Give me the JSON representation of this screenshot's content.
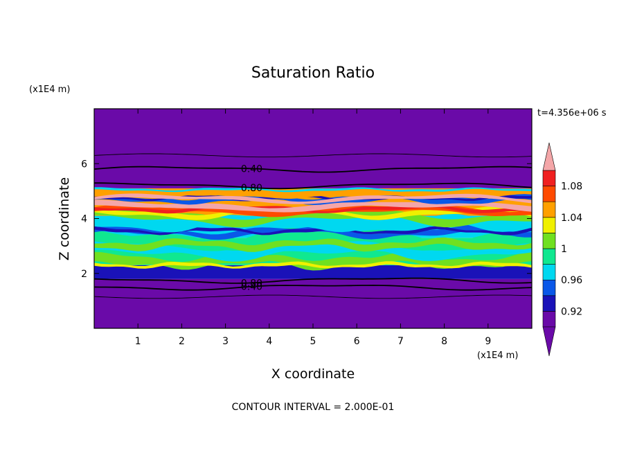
{
  "chart_data": {
    "type": "heatmap",
    "title": "Saturation Ratio",
    "xlabel": "X coordinate",
    "ylabel": "Z coordinate",
    "x_unit": "(x1E4 m)",
    "y_unit": "(x1E4 m)",
    "time_label": "t=4.356e+06 s",
    "footnote": "CONTOUR INTERVAL = 2.000E-01",
    "xlim": [
      0,
      10
    ],
    "ylim": [
      0,
      8
    ],
    "x_ticks": [
      "1",
      "2",
      "3",
      "4",
      "5",
      "6",
      "7",
      "8",
      "9"
    ],
    "y_ticks": [
      "2",
      "4",
      "6"
    ],
    "contour_lines": [
      {
        "level": 0.4,
        "label": "0.40",
        "z": 5.8
      },
      {
        "level": 0.8,
        "label": "0.80",
        "z": 5.2
      },
      {
        "level": 0.8,
        "label": "0.80",
        "z": 1.75
      },
      {
        "level": 0.4,
        "label": "0.40",
        "z": 1.5
      }
    ],
    "colorbar": {
      "ticks": [
        "1.08",
        "1.04",
        "1",
        "0.96",
        "0.92"
      ],
      "tick_values": [
        1.08,
        1.04,
        1.0,
        0.96,
        0.92
      ],
      "levels": [
        0.9,
        0.92,
        0.94,
        0.96,
        0.98,
        1.0,
        1.02,
        1.04,
        1.06,
        1.08,
        1.1
      ],
      "colors": [
        "#6a0aa8",
        "#1a12b8",
        "#0a58e8",
        "#00d8f0",
        "#10e890",
        "#70e020",
        "#f0f000",
        "#ffa000",
        "#ff4a00",
        "#f02020",
        "#f4a6a8"
      ],
      "under_color": "#6a0aa8",
      "over_color": "#f4a6a8"
    },
    "field_bands": [
      {
        "z_range": [
          0.0,
          1.8
        ],
        "value": "< 0.90",
        "color": "#6a0aa8"
      },
      {
        "z_range": [
          1.8,
          2.3
        ],
        "value": "0.92 - 0.98",
        "color": "#1a12b8"
      },
      {
        "z_range": [
          2.3,
          3.3
        ],
        "value": "0.98 - 1.02",
        "color": "#10e890"
      },
      {
        "z_range": [
          3.3,
          4.1
        ],
        "value": "0.96 - 1.04",
        "color": "#00d8f0"
      },
      {
        "z_range": [
          4.1,
          5.1
        ],
        "value": "0.94 - 1.10",
        "color": "#ffa000"
      },
      {
        "z_range": [
          5.1,
          8.0
        ],
        "value": "< 0.90",
        "color": "#6a0aa8"
      }
    ]
  }
}
